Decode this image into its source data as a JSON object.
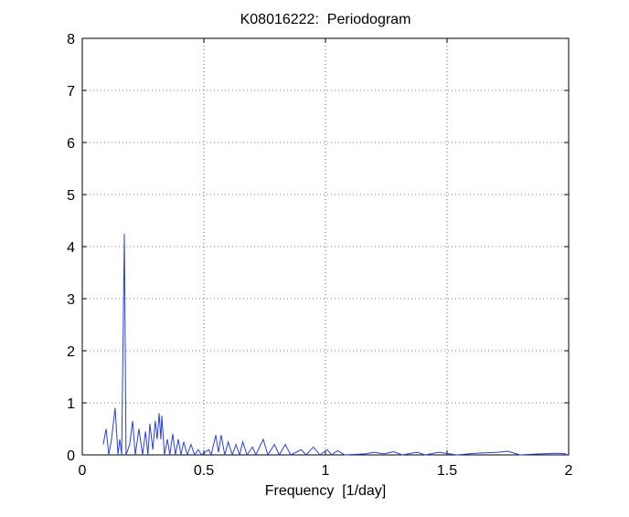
{
  "chart_data": {
    "type": "line",
    "title": "K08016222:  Periodogram",
    "x_label": "Frequency  [1/day]",
    "x": [
      0.086,
      0.098,
      0.109,
      0.12,
      0.135,
      0.147,
      0.154,
      0.162,
      0.173,
      0.18,
      0.195,
      0.207,
      0.218,
      0.233,
      0.248,
      0.26,
      0.27,
      0.278,
      0.29,
      0.3,
      0.308,
      0.316,
      0.323,
      0.327,
      0.338,
      0.35,
      0.36,
      0.372,
      0.383,
      0.395,
      0.406,
      0.417,
      0.432,
      0.447,
      0.462,
      0.477,
      0.49,
      0.52,
      0.53,
      0.549,
      0.56,
      0.571,
      0.586,
      0.6,
      0.617,
      0.632,
      0.647,
      0.66,
      0.677,
      0.7,
      0.714,
      0.744,
      0.763,
      0.79,
      0.81,
      0.835,
      0.857,
      0.9,
      0.92,
      0.95,
      0.977,
      1.007,
      1.026,
      1.05,
      1.08,
      1.165,
      1.2,
      1.24,
      1.28,
      1.316,
      1.376,
      1.41,
      1.466,
      1.54,
      1.617,
      1.71,
      1.75,
      1.8,
      1.88,
      1.955,
      1.99
    ],
    "series": [
      {
        "color": "#2a3fe0",
        "values": [
          0.2,
          0.5,
          0,
          0.3,
          0.9,
          0,
          0.3,
          0,
          4.25,
          0,
          0.2,
          0.65,
          0,
          0.5,
          0,
          0.45,
          0,
          0.6,
          0.1,
          0.65,
          0.3,
          0.8,
          0.3,
          0.75,
          0,
          0.3,
          0,
          0.4,
          0,
          0.3,
          0,
          0.25,
          0,
          0.2,
          0,
          0.1,
          0,
          0.1,
          0,
          0.38,
          0.05,
          0.38,
          0,
          0.25,
          0,
          0.2,
          0,
          0.25,
          0,
          0.15,
          0,
          0.3,
          0,
          0.2,
          0,
          0.2,
          0,
          0.1,
          0,
          0.15,
          0,
          0.1,
          0,
          0.08,
          0,
          0.02,
          0.05,
          0.02,
          0.06,
          0,
          0.05,
          0,
          0.05,
          0,
          0.03,
          0.05,
          0.07,
          0,
          0.02,
          0.03,
          0.02
        ]
      }
    ],
    "xlim": [
      0,
      2
    ],
    "xticks": [
      0,
      0.5,
      1,
      1.5,
      2
    ],
    "ylim": [
      0,
      8
    ],
    "yticks": [
      0,
      1,
      2,
      3,
      4,
      5,
      6,
      7,
      8
    ],
    "grid": true
  }
}
